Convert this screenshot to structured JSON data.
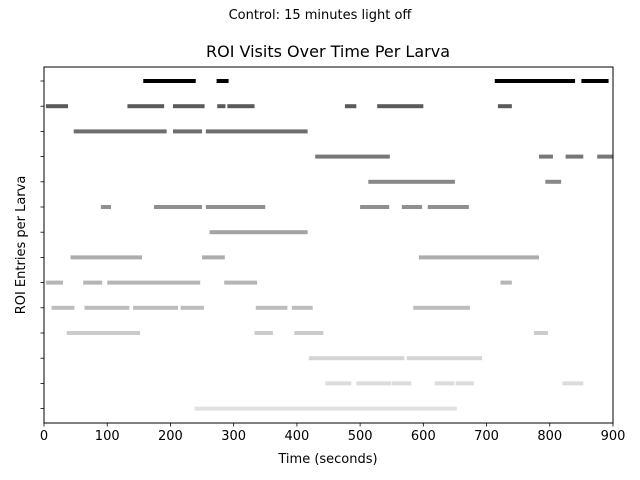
{
  "suptitle": "Control: 15 minutes light off",
  "chart_data": {
    "type": "broken-barh",
    "title": "ROI Visits Over Time Per Larva",
    "xlabel": "Time (seconds)",
    "ylabel": "ROI Entries per Larva",
    "xlim": [
      0,
      900
    ],
    "xticks": [
      "0",
      "100",
      "200",
      "300",
      "400",
      "500",
      "600",
      "700",
      "800",
      "900"
    ],
    "grid": false,
    "legend": "none",
    "rows": [
      {
        "color": "#000000",
        "intervals": [
          [
            157,
            240
          ],
          [
            273,
            292
          ],
          [
            713,
            840
          ],
          [
            850,
            893
          ]
        ]
      },
      {
        "color": "#5a5a5a",
        "intervals": [
          [
            3,
            38
          ],
          [
            132,
            190
          ],
          [
            204,
            254
          ],
          [
            274,
            287
          ],
          [
            290,
            333
          ],
          [
            476,
            494
          ],
          [
            527,
            600
          ],
          [
            718,
            740
          ]
        ]
      },
      {
        "color": "#6e6e6e",
        "intervals": [
          [
            47,
            194
          ],
          [
            204,
            250
          ],
          [
            256,
            417
          ]
        ]
      },
      {
        "color": "#777777",
        "intervals": [
          [
            429,
            547
          ],
          [
            783,
            805
          ],
          [
            825,
            853
          ],
          [
            875,
            900
          ]
        ]
      },
      {
        "color": "#888888",
        "intervals": [
          [
            513,
            650
          ],
          [
            793,
            818
          ]
        ]
      },
      {
        "color": "#8f8f8f",
        "intervals": [
          [
            90,
            106
          ],
          [
            174,
            250
          ],
          [
            256,
            350
          ],
          [
            500,
            546
          ],
          [
            566,
            598
          ],
          [
            607,
            630
          ],
          [
            626,
            672
          ]
        ]
      },
      {
        "color": "#a3a3a3",
        "intervals": [
          [
            262,
            417
          ]
        ]
      },
      {
        "color": "#acacac",
        "intervals": [
          [
            42,
            155
          ],
          [
            250,
            286
          ],
          [
            593,
            783
          ]
        ]
      },
      {
        "color": "#b5b5b5",
        "intervals": [
          [
            3,
            30
          ],
          [
            62,
            92
          ],
          [
            100,
            247
          ],
          [
            285,
            337
          ],
          [
            722,
            740
          ]
        ]
      },
      {
        "color": "#bdbdbd",
        "intervals": [
          [
            12,
            48
          ],
          [
            64,
            135
          ],
          [
            141,
            212
          ],
          [
            216,
            253
          ],
          [
            335,
            385
          ],
          [
            392,
            425
          ],
          [
            584,
            674
          ]
        ]
      },
      {
        "color": "#cbcbcb",
        "intervals": [
          [
            36,
            152
          ],
          [
            333,
            362
          ],
          [
            396,
            442
          ],
          [
            775,
            797
          ]
        ]
      },
      {
        "color": "#d5d5d5",
        "intervals": [
          [
            419,
            570
          ],
          [
            574,
            693
          ]
        ]
      },
      {
        "color": "#dcdcdc",
        "intervals": [
          [
            445,
            486
          ],
          [
            494,
            549
          ],
          [
            550,
            581
          ],
          [
            618,
            649
          ],
          [
            651,
            680
          ],
          [
            820,
            853
          ]
        ]
      },
      {
        "color": "#e1e1e1",
        "intervals": [
          [
            238,
            653
          ]
        ]
      }
    ]
  }
}
